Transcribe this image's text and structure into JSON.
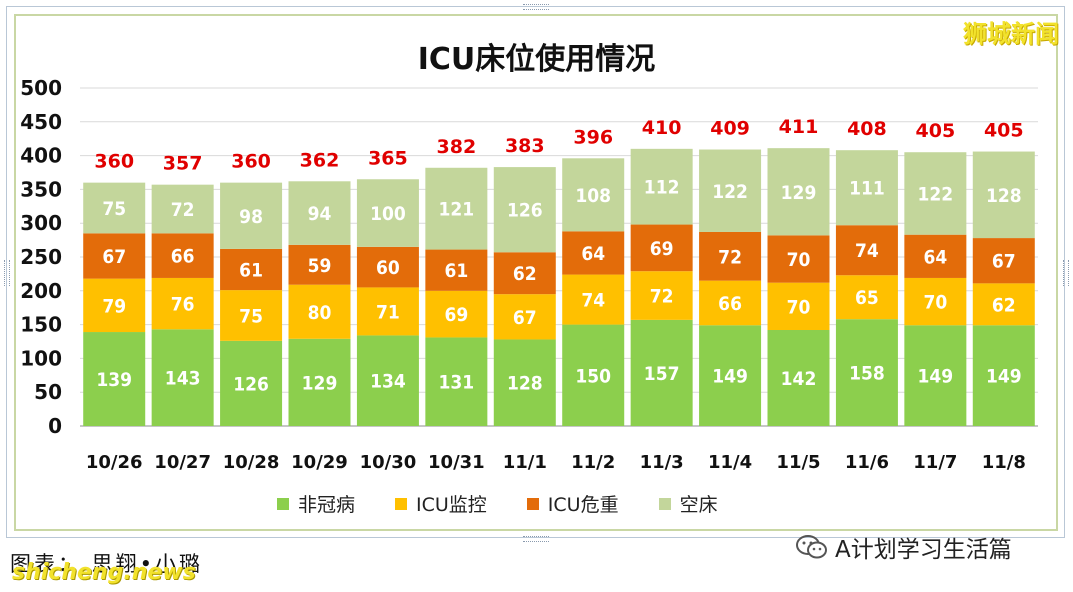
{
  "brand": "狮城新闻",
  "credit": "图表： 思翔•小璐",
  "watermark": "shicheng.news",
  "wechat_account": "A计划学习生活篇",
  "colors": {
    "non_covid": "#8ccf4d",
    "icu_monitor": "#ffc000",
    "icu_critical": "#e36c0a",
    "empty_bed": "#c3d69b",
    "total_label": "#e00000"
  },
  "chart_data": {
    "type": "bar",
    "stacked": true,
    "title": "ICU床位使用情况",
    "categories": [
      "10/26",
      "10/27",
      "10/28",
      "10/29",
      "10/30",
      "10/31",
      "11/1",
      "11/2",
      "11/3",
      "11/4",
      "11/5",
      "11/6",
      "11/7",
      "11/8"
    ],
    "series": [
      {
        "name": "非冠病",
        "values": [
          139,
          143,
          126,
          129,
          134,
          131,
          128,
          150,
          157,
          149,
          142,
          158,
          149,
          149
        ]
      },
      {
        "name": "ICU监控",
        "values": [
          79,
          76,
          75,
          80,
          71,
          69,
          67,
          74,
          72,
          66,
          70,
          65,
          70,
          62
        ]
      },
      {
        "name": "ICU危重",
        "values": [
          67,
          66,
          61,
          59,
          60,
          61,
          62,
          64,
          69,
          72,
          70,
          74,
          64,
          67
        ]
      },
      {
        "name": "空床",
        "values": [
          75,
          72,
          98,
          94,
          100,
          121,
          126,
          108,
          112,
          122,
          129,
          111,
          122,
          128
        ]
      }
    ],
    "totals": [
      360,
      357,
      360,
      362,
      365,
      382,
      383,
      396,
      410,
      409,
      411,
      408,
      405,
      405
    ],
    "ylim": [
      0,
      500
    ],
    "yticks": [
      0,
      50,
      100,
      150,
      200,
      250,
      300,
      350,
      400,
      450,
      500
    ],
    "grid": true,
    "legend_position": "bottom"
  }
}
